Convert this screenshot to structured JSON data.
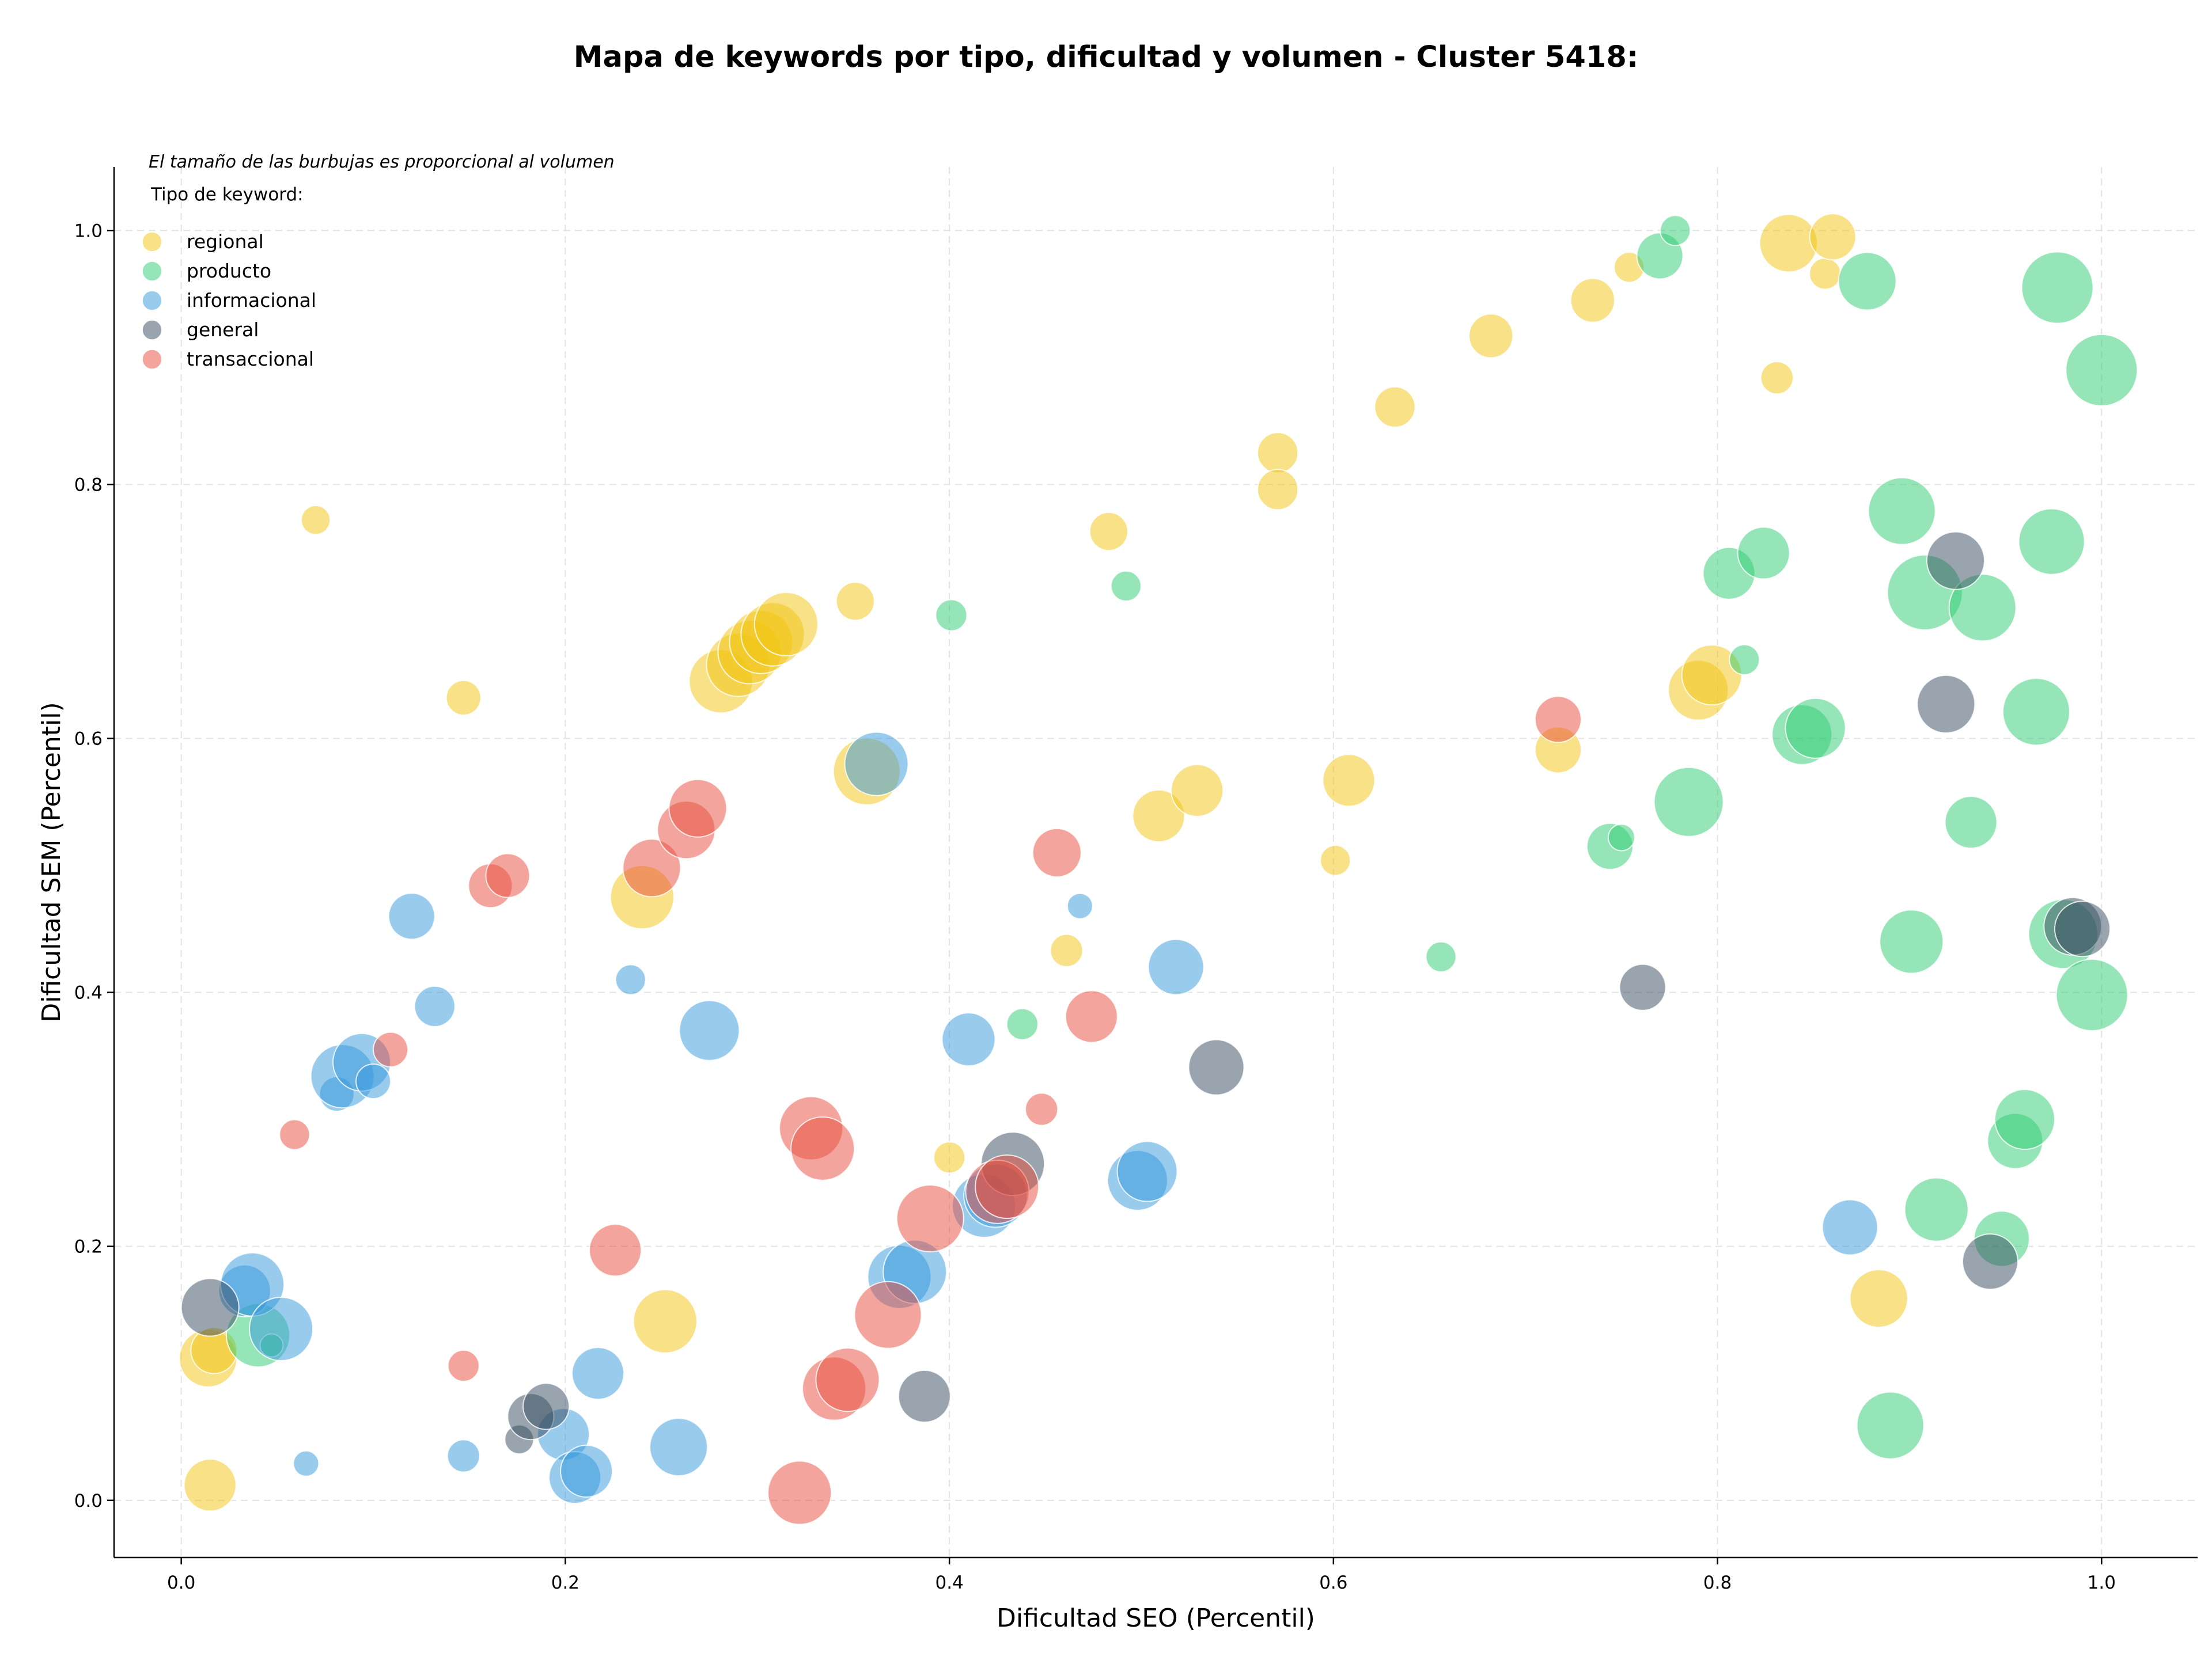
{
  "chart_data": {
    "type": "scatter",
    "title": "Mapa de keywords por tipo, dificultad y volumen - Cluster 5418:",
    "xlabel": "Dificultad SEO (Percentil)",
    "ylabel": "Dificultad SEM (Percentil)",
    "xlim": [
      -0.035,
      1.05
    ],
    "ylim": [
      -0.045,
      1.05
    ],
    "xticks": [
      "0.0",
      "0.2",
      "0.4",
      "0.6",
      "0.8",
      "1.0"
    ],
    "yticks": [
      "0.0",
      "0.2",
      "0.4",
      "0.6",
      "0.8",
      "1.0"
    ],
    "grid": true,
    "annotation": "El tamaño de las burbujas es proporcional al volumen",
    "legend": {
      "title": "Tipo de keyword:",
      "placement": "top-left",
      "entries": [
        "regional",
        "producto",
        "informacional",
        "general",
        "transaccional"
      ]
    },
    "series": [
      {
        "name": "regional",
        "color": "#f1c40f",
        "points": [
          {
            "x": 0.015,
            "y": 0.012,
            "size": 45
          },
          {
            "x": 0.014,
            "y": 0.112,
            "size": 50
          },
          {
            "x": 0.017,
            "y": 0.118,
            "size": 40
          },
          {
            "x": 0.07,
            "y": 0.772,
            "size": 25
          },
          {
            "x": 0.147,
            "y": 0.632,
            "size": 30
          },
          {
            "x": 0.24,
            "y": 0.475,
            "size": 55
          },
          {
            "x": 0.252,
            "y": 0.141,
            "size": 55
          },
          {
            "x": 0.281,
            "y": 0.645,
            "size": 55
          },
          {
            "x": 0.29,
            "y": 0.658,
            "size": 55
          },
          {
            "x": 0.296,
            "y": 0.668,
            "size": 55
          },
          {
            "x": 0.302,
            "y": 0.676,
            "size": 55
          },
          {
            "x": 0.308,
            "y": 0.682,
            "size": 55
          },
          {
            "x": 0.315,
            "y": 0.69,
            "size": 55
          },
          {
            "x": 0.351,
            "y": 0.708,
            "size": 33
          },
          {
            "x": 0.357,
            "y": 0.574,
            "size": 58
          },
          {
            "x": 0.4,
            "y": 0.27,
            "size": 27
          },
          {
            "x": 0.461,
            "y": 0.433,
            "size": 28
          },
          {
            "x": 0.483,
            "y": 0.763,
            "size": 33
          },
          {
            "x": 0.509,
            "y": 0.539,
            "size": 45
          },
          {
            "x": 0.529,
            "y": 0.559,
            "size": 45
          },
          {
            "x": 0.571,
            "y": 0.825,
            "size": 35
          },
          {
            "x": 0.571,
            "y": 0.796,
            "size": 35
          },
          {
            "x": 0.601,
            "y": 0.504,
            "size": 26
          },
          {
            "x": 0.608,
            "y": 0.567,
            "size": 45
          },
          {
            "x": 0.632,
            "y": 0.861,
            "size": 35
          },
          {
            "x": 0.682,
            "y": 0.917,
            "size": 38
          },
          {
            "x": 0.717,
            "y": 0.591,
            "size": 40
          },
          {
            "x": 0.735,
            "y": 0.945,
            "size": 38
          },
          {
            "x": 0.754,
            "y": 0.971,
            "size": 26
          },
          {
            "x": 0.79,
            "y": 0.638,
            "size": 52
          },
          {
            "x": 0.797,
            "y": 0.65,
            "size": 52
          },
          {
            "x": 0.831,
            "y": 0.884,
            "size": 28
          },
          {
            "x": 0.837,
            "y": 0.99,
            "size": 50
          },
          {
            "x": 0.856,
            "y": 0.966,
            "size": 27
          },
          {
            "x": 0.86,
            "y": 0.995,
            "size": 40
          },
          {
            "x": 0.884,
            "y": 0.159,
            "size": 50
          }
        ]
      },
      {
        "name": "producto",
        "color": "#2ecc71",
        "points": [
          {
            "x": 0.04,
            "y": 0.13,
            "size": 55
          },
          {
            "x": 0.047,
            "y": 0.122,
            "size": 20
          },
          {
            "x": 0.401,
            "y": 0.697,
            "size": 27
          },
          {
            "x": 0.438,
            "y": 0.375,
            "size": 27
          },
          {
            "x": 0.492,
            "y": 0.72,
            "size": 26
          },
          {
            "x": 0.656,
            "y": 0.428,
            "size": 26
          },
          {
            "x": 0.744,
            "y": 0.515,
            "size": 40
          },
          {
            "x": 0.75,
            "y": 0.522,
            "size": 23
          },
          {
            "x": 0.77,
            "y": 0.98,
            "size": 40
          },
          {
            "x": 0.778,
            "y": 1.0,
            "size": 26
          },
          {
            "x": 0.785,
            "y": 0.55,
            "size": 60
          },
          {
            "x": 0.806,
            "y": 0.73,
            "size": 45
          },
          {
            "x": 0.814,
            "y": 0.662,
            "size": 26
          },
          {
            "x": 0.824,
            "y": 0.746,
            "size": 45
          },
          {
            "x": 0.844,
            "y": 0.603,
            "size": 52
          },
          {
            "x": 0.851,
            "y": 0.608,
            "size": 52
          },
          {
            "x": 0.878,
            "y": 0.96,
            "size": 50
          },
          {
            "x": 0.89,
            "y": 0.059,
            "size": 58
          },
          {
            "x": 0.896,
            "y": 0.779,
            "size": 58
          },
          {
            "x": 0.901,
            "y": 0.44,
            "size": 55
          },
          {
            "x": 0.908,
            "y": 0.715,
            "size": 65
          },
          {
            "x": 0.914,
            "y": 0.229,
            "size": 55
          },
          {
            "x": 0.932,
            "y": 0.534,
            "size": 45
          },
          {
            "x": 0.938,
            "y": 0.703,
            "size": 58
          },
          {
            "x": 0.948,
            "y": 0.206,
            "size": 48
          },
          {
            "x": 0.955,
            "y": 0.283,
            "size": 48
          },
          {
            "x": 0.96,
            "y": 0.3,
            "size": 52
          },
          {
            "x": 0.966,
            "y": 0.621,
            "size": 58
          },
          {
            "x": 0.974,
            "y": 0.755,
            "size": 57
          },
          {
            "x": 0.977,
            "y": 0.955,
            "size": 62
          },
          {
            "x": 0.98,
            "y": 0.446,
            "size": 60
          },
          {
            "x": 0.995,
            "y": 0.398,
            "size": 62
          },
          {
            "x": 1.0,
            "y": 0.89,
            "size": 62
          }
        ]
      },
      {
        "name": "informacional",
        "color": "#3498db",
        "points": [
          {
            "x": 0.033,
            "y": 0.165,
            "size": 45
          },
          {
            "x": 0.037,
            "y": 0.17,
            "size": 55
          },
          {
            "x": 0.052,
            "y": 0.135,
            "size": 55
          },
          {
            "x": 0.065,
            "y": 0.029,
            "size": 22
          },
          {
            "x": 0.081,
            "y": 0.32,
            "size": 30
          },
          {
            "x": 0.084,
            "y": 0.334,
            "size": 55
          },
          {
            "x": 0.094,
            "y": 0.345,
            "size": 50
          },
          {
            "x": 0.1,
            "y": 0.33,
            "size": 30
          },
          {
            "x": 0.12,
            "y": 0.46,
            "size": 40
          },
          {
            "x": 0.132,
            "y": 0.389,
            "size": 35
          },
          {
            "x": 0.147,
            "y": 0.035,
            "size": 28
          },
          {
            "x": 0.199,
            "y": 0.052,
            "size": 45
          },
          {
            "x": 0.205,
            "y": 0.018,
            "size": 45
          },
          {
            "x": 0.211,
            "y": 0.023,
            "size": 45
          },
          {
            "x": 0.217,
            "y": 0.1,
            "size": 45
          },
          {
            "x": 0.234,
            "y": 0.41,
            "size": 26
          },
          {
            "x": 0.259,
            "y": 0.042,
            "size": 50
          },
          {
            "x": 0.275,
            "y": 0.37,
            "size": 52
          },
          {
            "x": 0.362,
            "y": 0.58,
            "size": 55
          },
          {
            "x": 0.374,
            "y": 0.176,
            "size": 55
          },
          {
            "x": 0.382,
            "y": 0.18,
            "size": 55
          },
          {
            "x": 0.41,
            "y": 0.363,
            "size": 46
          },
          {
            "x": 0.418,
            "y": 0.232,
            "size": 55
          },
          {
            "x": 0.424,
            "y": 0.24,
            "size": 55
          },
          {
            "x": 0.468,
            "y": 0.468,
            "size": 22
          },
          {
            "x": 0.498,
            "y": 0.252,
            "size": 52
          },
          {
            "x": 0.503,
            "y": 0.259,
            "size": 52
          },
          {
            "x": 0.518,
            "y": 0.42,
            "size": 48
          },
          {
            "x": 0.869,
            "y": 0.215,
            "size": 48
          }
        ]
      },
      {
        "name": "general",
        "color": "#34495e",
        "points": [
          {
            "x": 0.015,
            "y": 0.152,
            "size": 50
          },
          {
            "x": 0.176,
            "y": 0.048,
            "size": 25
          },
          {
            "x": 0.182,
            "y": 0.066,
            "size": 40
          },
          {
            "x": 0.19,
            "y": 0.074,
            "size": 40
          },
          {
            "x": 0.387,
            "y": 0.082,
            "size": 45
          },
          {
            "x": 0.433,
            "y": 0.265,
            "size": 55
          },
          {
            "x": 0.539,
            "y": 0.341,
            "size": 48
          },
          {
            "x": 0.761,
            "y": 0.404,
            "size": 40
          },
          {
            "x": 0.919,
            "y": 0.627,
            "size": 50
          },
          {
            "x": 0.924,
            "y": 0.74,
            "size": 50
          },
          {
            "x": 0.942,
            "y": 0.188,
            "size": 48
          },
          {
            "x": 0.985,
            "y": 0.452,
            "size": 50
          },
          {
            "x": 0.99,
            "y": 0.45,
            "size": 48
          }
        ]
      },
      {
        "name": "transaccional",
        "color": "#e74c3c",
        "points": [
          {
            "x": 0.059,
            "y": 0.288,
            "size": 26
          },
          {
            "x": 0.109,
            "y": 0.355,
            "size": 30
          },
          {
            "x": 0.147,
            "y": 0.106,
            "size": 27
          },
          {
            "x": 0.161,
            "y": 0.484,
            "size": 38
          },
          {
            "x": 0.17,
            "y": 0.492,
            "size": 38
          },
          {
            "x": 0.226,
            "y": 0.197,
            "size": 45
          },
          {
            "x": 0.245,
            "y": 0.498,
            "size": 50
          },
          {
            "x": 0.263,
            "y": 0.528,
            "size": 50
          },
          {
            "x": 0.269,
            "y": 0.545,
            "size": 50
          },
          {
            "x": 0.322,
            "y": 0.006,
            "size": 55
          },
          {
            "x": 0.328,
            "y": 0.293,
            "size": 55
          },
          {
            "x": 0.334,
            "y": 0.277,
            "size": 55
          },
          {
            "x": 0.34,
            "y": 0.088,
            "size": 55
          },
          {
            "x": 0.347,
            "y": 0.095,
            "size": 55
          },
          {
            "x": 0.368,
            "y": 0.146,
            "size": 58
          },
          {
            "x": 0.39,
            "y": 0.222,
            "size": 58
          },
          {
            "x": 0.425,
            "y": 0.243,
            "size": 55
          },
          {
            "x": 0.43,
            "y": 0.247,
            "size": 55
          },
          {
            "x": 0.448,
            "y": 0.308,
            "size": 28
          },
          {
            "x": 0.456,
            "y": 0.51,
            "size": 42
          },
          {
            "x": 0.474,
            "y": 0.381,
            "size": 45
          },
          {
            "x": 0.717,
            "y": 0.615,
            "size": 40
          }
        ]
      }
    ]
  }
}
